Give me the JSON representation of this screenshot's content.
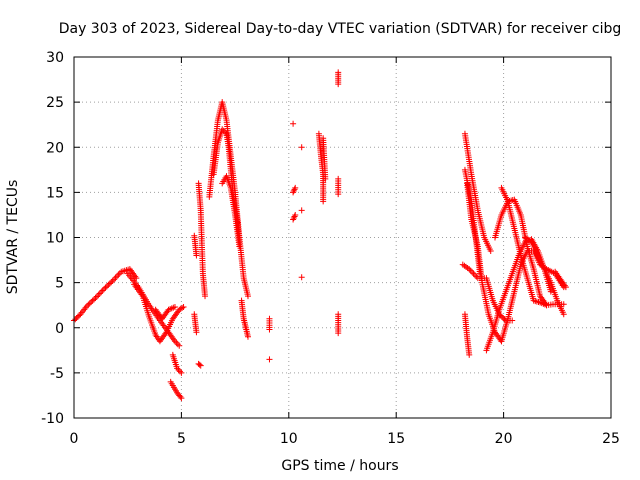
{
  "chart_data": {
    "type": "scatter",
    "title": "Day 303 of 2023, Sidereal Day-to-day VTEC variation (SDTVAR) for receiver cibg",
    "xlabel": "GPS time / hours",
    "ylabel": "SDTVAR / TECUs",
    "xlim": [
      0,
      25
    ],
    "ylim": [
      -10,
      30
    ],
    "xticks": [
      0,
      5,
      10,
      15,
      20,
      25
    ],
    "yticks": [
      -10,
      -5,
      0,
      5,
      10,
      15,
      20,
      25,
      30
    ],
    "grid": true,
    "marker": "+",
    "series": [
      {
        "name": "SDTVAR",
        "color": "#ff0000",
        "tracks": [
          [
            [
              0.0,
              0.8
            ],
            [
              0.3,
              1.5
            ],
            [
              0.6,
              2.4
            ],
            [
              1.0,
              3.3
            ],
            [
              1.4,
              4.3
            ],
            [
              1.8,
              5.2
            ],
            [
              2.2,
              6.2
            ],
            [
              2.6,
              6.5
            ],
            [
              2.9,
              5.5
            ]
          ],
          [
            [
              2.5,
              6.0
            ],
            [
              3.0,
              4.5
            ],
            [
              3.5,
              2.5
            ],
            [
              4.0,
              0.8
            ],
            [
              4.4,
              -0.5
            ],
            [
              4.7,
              -1.5
            ],
            [
              4.9,
              -2.0
            ]
          ],
          [
            [
              2.8,
              4.8
            ],
            [
              3.2,
              3.5
            ],
            [
              3.5,
              1.2
            ],
            [
              3.8,
              -0.8
            ],
            [
              4.0,
              -1.5
            ],
            [
              4.3,
              -0.5
            ],
            [
              4.6,
              1.0
            ],
            [
              4.9,
              2.0
            ],
            [
              5.1,
              2.3
            ]
          ],
          [
            [
              3.8,
              2.0
            ],
            [
              4.1,
              1.0
            ],
            [
              4.4,
              2.0
            ],
            [
              4.7,
              2.3
            ]
          ],
          [
            [
              4.6,
              -3.0
            ],
            [
              4.8,
              -4.5
            ],
            [
              5.0,
              -5.0
            ]
          ],
          [
            [
              4.5,
              -6.0
            ],
            [
              4.8,
              -7.2
            ],
            [
              5.0,
              -7.8
            ]
          ],
          [
            [
              5.6,
              1.5
            ],
            [
              5.7,
              -0.5
            ]
          ],
          [
            [
              5.8,
              -4.0
            ],
            [
              5.9,
              -4.2
            ]
          ],
          [
            [
              5.6,
              10.2
            ],
            [
              5.7,
              8.0
            ]
          ],
          [
            [
              5.8,
              16.0
            ],
            [
              5.9,
              13.0
            ],
            [
              6.0,
              6.0
            ],
            [
              6.1,
              3.5
            ]
          ],
          [
            [
              6.3,
              14.5
            ],
            [
              6.5,
              19.0
            ],
            [
              6.7,
              23.0
            ],
            [
              6.9,
              25.0
            ],
            [
              7.1,
              23.0
            ],
            [
              7.3,
              19.0
            ],
            [
              7.5,
              15.0
            ],
            [
              7.7,
              10.0
            ],
            [
              7.9,
              5.5
            ],
            [
              8.1,
              3.5
            ]
          ],
          [
            [
              6.5,
              17.0
            ],
            [
              6.7,
              20.5
            ],
            [
              6.9,
              22.0
            ],
            [
              7.1,
              21.5
            ],
            [
              7.2,
              20.0
            ],
            [
              7.4,
              15.0
            ],
            [
              7.6,
              12.0
            ],
            [
              7.7,
              9.5
            ]
          ],
          [
            [
              6.9,
              16.0
            ],
            [
              7.1,
              16.8
            ],
            [
              7.3,
              15.5
            ],
            [
              7.5,
              12.5
            ],
            [
              7.7,
              9.0
            ]
          ],
          [
            [
              7.8,
              3.0
            ],
            [
              7.9,
              1.0
            ],
            [
              8.0,
              0.0
            ],
            [
              8.1,
              -1.0
            ]
          ],
          [
            [
              9.1,
              1.0
            ],
            [
              9.1,
              -0.2
            ]
          ],
          [
            [
              9.1,
              -3.5
            ]
          ],
          [
            [
              10.2,
              22.6
            ]
          ],
          [
            [
              10.2,
              15.0
            ],
            [
              10.3,
              15.5
            ]
          ],
          [
            [
              10.2,
              12.0
            ],
            [
              10.3,
              12.5
            ]
          ],
          [
            [
              10.6,
              20.0
            ]
          ],
          [
            [
              10.6,
              13.0
            ]
          ],
          [
            [
              10.6,
              5.6
            ]
          ],
          [
            [
              11.4,
              21.5
            ],
            [
              11.5,
              19.0
            ],
            [
              11.6,
              17.0
            ],
            [
              11.6,
              14.0
            ]
          ],
          [
            [
              11.6,
              21.0
            ],
            [
              11.7,
              16.5
            ]
          ],
          [
            [
              12.3,
              16.5
            ],
            [
              12.3,
              14.8
            ]
          ],
          [
            [
              12.3,
              28.3
            ],
            [
              12.3,
              27.0
            ]
          ],
          [
            [
              12.3,
              1.5
            ],
            [
              12.3,
              -0.6
            ]
          ],
          [
            [
              18.2,
              21.5
            ],
            [
              18.5,
              17.0
            ],
            [
              18.8,
              13.0
            ],
            [
              19.1,
              10.0
            ],
            [
              19.4,
              8.5
            ]
          ],
          [
            [
              18.3,
              16.0
            ],
            [
              18.5,
              12.0
            ],
            [
              18.8,
              9.0
            ],
            [
              19.0,
              5.0
            ],
            [
              19.3,
              1.5
            ],
            [
              19.6,
              -0.5
            ],
            [
              19.9,
              -1.5
            ]
          ],
          [
            [
              18.2,
              17.5
            ],
            [
              18.5,
              14.0
            ],
            [
              18.7,
              10.0
            ],
            [
              18.9,
              6.0
            ]
          ],
          [
            [
              18.1,
              7.0
            ],
            [
              18.4,
              6.5
            ],
            [
              18.8,
              5.5
            ],
            [
              19.2,
              5.5
            ],
            [
              19.5,
              3.0
            ],
            [
              19.8,
              1.5
            ],
            [
              20.1,
              0.8
            ],
            [
              20.4,
              0.8
            ]
          ],
          [
            [
              18.2,
              1.5
            ],
            [
              18.3,
              -1.0
            ],
            [
              18.4,
              -3.0
            ]
          ],
          [
            [
              19.2,
              -2.5
            ],
            [
              19.5,
              -0.5
            ],
            [
              19.8,
              2.0
            ],
            [
              20.1,
              4.0
            ],
            [
              20.4,
              6.0
            ],
            [
              20.7,
              8.0
            ],
            [
              21.0,
              9.5
            ],
            [
              21.3,
              9.8
            ],
            [
              21.6,
              8.5
            ],
            [
              21.9,
              6.5
            ],
            [
              22.2,
              4.0
            ]
          ],
          [
            [
              19.6,
              10.0
            ],
            [
              19.9,
              12.5
            ],
            [
              20.2,
              14.0
            ],
            [
              20.5,
              14.2
            ],
            [
              20.8,
              12.5
            ],
            [
              21.1,
              9.0
            ],
            [
              21.4,
              6.5
            ],
            [
              21.7,
              3.5
            ],
            [
              22.0,
              2.5
            ]
          ],
          [
            [
              19.9,
              15.5
            ],
            [
              20.2,
              14.0
            ],
            [
              20.5,
              11.0
            ],
            [
              20.8,
              8.0
            ],
            [
              21.1,
              5.5
            ],
            [
              21.4,
              3.0
            ],
            [
              21.7,
              2.8
            ],
            [
              22.0,
              2.5
            ],
            [
              22.3,
              2.6
            ],
            [
              22.8,
              2.6
            ]
          ],
          [
            [
              19.9,
              -1.5
            ],
            [
              20.2,
              1.0
            ],
            [
              20.5,
              4.0
            ],
            [
              20.8,
              7.0
            ],
            [
              21.1,
              8.5
            ],
            [
              21.4,
              8.5
            ],
            [
              21.7,
              7.0
            ],
            [
              22.0,
              6.5
            ],
            [
              22.4,
              6.0
            ],
            [
              22.8,
              4.5
            ]
          ],
          [
            [
              21.0,
              10.0
            ],
            [
              21.3,
              9.5
            ],
            [
              21.6,
              8.0
            ],
            [
              21.9,
              6.5
            ],
            [
              22.2,
              5.0
            ],
            [
              22.5,
              3.0
            ],
            [
              22.8,
              1.5
            ]
          ],
          [
            [
              22.4,
              6.2
            ],
            [
              22.6,
              5.5
            ],
            [
              22.9,
              4.5
            ]
          ]
        ]
      }
    ]
  }
}
